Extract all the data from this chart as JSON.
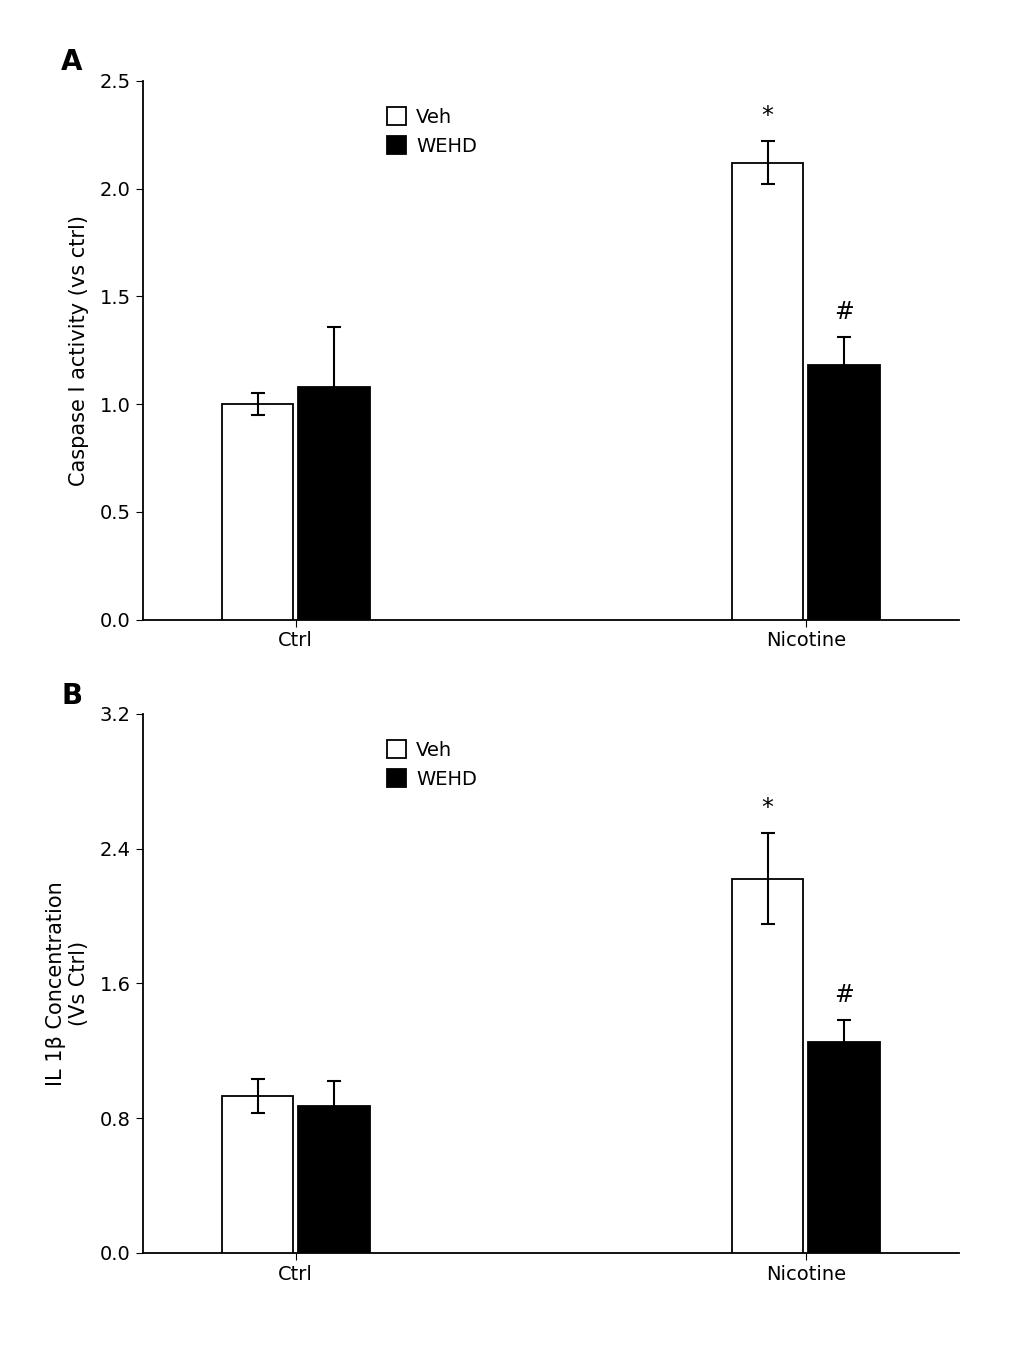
{
  "panel_A": {
    "title_label": "A",
    "ylabel": "Caspase I activity (vs ctrl)",
    "groups": [
      "Ctrl",
      "Nicotine"
    ],
    "veh_values": [
      1.0,
      2.12
    ],
    "wehd_values": [
      1.08,
      1.18
    ],
    "veh_errors": [
      0.05,
      0.1
    ],
    "wehd_errors": [
      0.28,
      0.13
    ],
    "ylim": [
      0,
      2.5
    ],
    "yticks": [
      0,
      0.5,
      1.0,
      1.5,
      2.0,
      2.5
    ],
    "significance_veh": [
      "",
      "*"
    ],
    "significance_wehd": [
      "",
      "#"
    ],
    "veh_color": "#ffffff",
    "wehd_color": "#000000",
    "bar_edge_color": "#000000"
  },
  "panel_B": {
    "title_label": "B",
    "ylabel": "IL 1β Concentration\n(Vs Ctrl)",
    "groups": [
      "Ctrl",
      "Nicotine"
    ],
    "veh_values": [
      0.93,
      2.22
    ],
    "wehd_values": [
      0.87,
      1.25
    ],
    "veh_errors": [
      0.1,
      0.27
    ],
    "wehd_errors": [
      0.15,
      0.13
    ],
    "ylim": [
      0,
      3.2
    ],
    "yticks": [
      0,
      0.8,
      1.6,
      2.4,
      3.2
    ],
    "significance_veh": [
      "",
      "*"
    ],
    "significance_wehd": [
      "",
      "#"
    ],
    "veh_color": "#ffffff",
    "wehd_color": "#000000",
    "bar_edge_color": "#000000"
  },
  "legend_labels": [
    "Veh",
    "WEHD"
  ],
  "xtick_labels": [
    "Ctrl",
    "Nicotine"
  ],
  "bar_width": 0.28,
  "font_size": 15,
  "tick_font_size": 14,
  "annot_font_size": 17
}
